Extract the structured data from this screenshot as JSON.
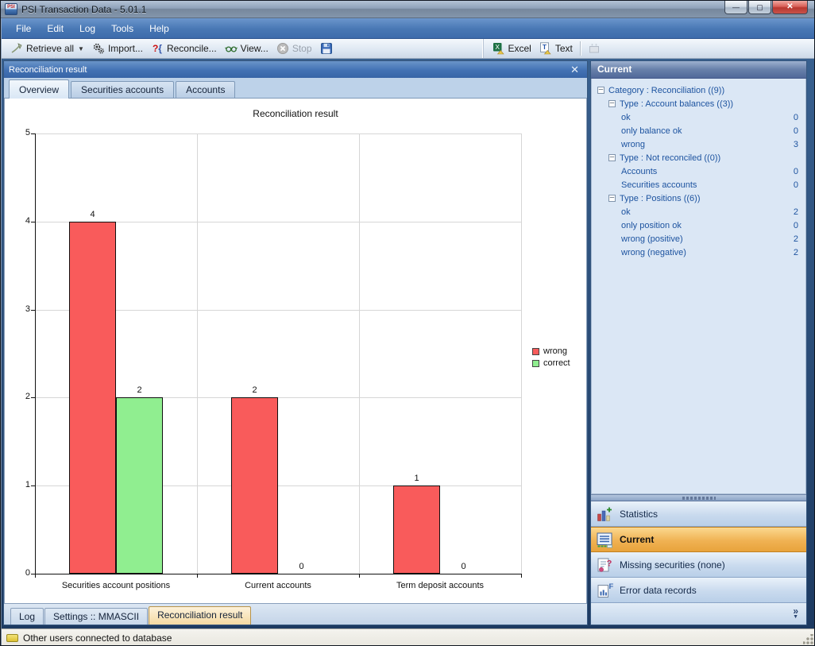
{
  "window": {
    "title": "PSI Transaction Data - 5.01.1",
    "app_icon_text": "PSI",
    "controls": [
      {
        "name": "minimize",
        "glyph": "—"
      },
      {
        "name": "maximize",
        "glyph": "▢"
      },
      {
        "name": "close",
        "glyph": "✕"
      }
    ]
  },
  "menu_bar": {
    "items": [
      "File",
      "Edit",
      "Log",
      "Tools",
      "Help"
    ]
  },
  "toolbar": {
    "left": [
      {
        "label": "Retrieve all",
        "icon": "retrieve-icon",
        "dropdown": true,
        "enabled": true
      },
      {
        "label": "Import...",
        "icon": "import-gears-icon",
        "enabled": true
      },
      {
        "label": "Reconcile...",
        "icon": "reconcile-icon",
        "enabled": true
      },
      {
        "label": "View...",
        "icon": "view-glasses-icon",
        "enabled": true
      },
      {
        "label": "Stop",
        "icon": "stop-icon",
        "enabled": false
      },
      {
        "label": "",
        "icon": "save-icon",
        "enabled": true
      }
    ],
    "right": [
      {
        "label": "Excel",
        "icon": "excel-export-icon",
        "enabled": true
      },
      {
        "label": "Text",
        "icon": "text-export-icon",
        "enabled": true,
        "sep_after": true
      },
      {
        "label": "",
        "icon": "disabled-grid-icon",
        "enabled": false
      }
    ]
  },
  "document_window": {
    "title": "Reconciliation result",
    "close_glyph": "✕",
    "tabs": [
      {
        "label": "Overview",
        "active": true
      },
      {
        "label": "Securities accounts",
        "active": false
      },
      {
        "label": "Accounts",
        "active": false
      }
    ],
    "bottom_tabs": [
      {
        "label": "Log",
        "active": false
      },
      {
        "label": "Settings :: MMASCII",
        "active": false
      },
      {
        "label": "Reconciliation result",
        "active": true
      }
    ]
  },
  "chart_data": {
    "type": "bar",
    "title": "Reconciliation result",
    "categories": [
      "Securities account positions",
      "Current accounts",
      "Term deposit accounts"
    ],
    "series": [
      {
        "name": "wrong",
        "color": "#f95b5b",
        "values": [
          4,
          2,
          1
        ]
      },
      {
        "name": "correct",
        "color": "#90ee90",
        "values": [
          2,
          0,
          0
        ]
      }
    ],
    "xlabel": "",
    "ylabel": "",
    "ylim": [
      0,
      5
    ],
    "yticks": [
      0,
      1,
      2,
      3,
      4,
      5
    ],
    "grid": true,
    "legend_position": "right",
    "value_labels": true
  },
  "side_panel": {
    "header": "Current",
    "tree": [
      {
        "label": "Category : Reconciliation ((9))",
        "level": 0,
        "expander": true,
        "count": ""
      },
      {
        "label": "Type : Account balances ((3))",
        "level": 1,
        "expander": true,
        "count": ""
      },
      {
        "label": "ok",
        "level": 2,
        "expander": false,
        "count": "0"
      },
      {
        "label": "only balance ok",
        "level": 2,
        "expander": false,
        "count": "0"
      },
      {
        "label": "wrong",
        "level": 2,
        "expander": false,
        "count": "3"
      },
      {
        "label": "Type : Not reconciled ((0))",
        "level": 1,
        "expander": true,
        "count": ""
      },
      {
        "label": "Accounts",
        "level": 2,
        "expander": false,
        "count": "0"
      },
      {
        "label": "Securities accounts",
        "level": 2,
        "expander": false,
        "count": "0"
      },
      {
        "label": "Type : Positions ((6))",
        "level": 1,
        "expander": true,
        "count": ""
      },
      {
        "label": "ok",
        "level": 2,
        "expander": false,
        "count": "2"
      },
      {
        "label": "only position ok",
        "level": 2,
        "expander": false,
        "count": "0"
      },
      {
        "label": "wrong (positive)",
        "level": 2,
        "expander": false,
        "count": "2"
      },
      {
        "label": "wrong (negative)",
        "level": 2,
        "expander": false,
        "count": "2"
      }
    ],
    "nav_buttons": [
      {
        "label": "Statistics",
        "icon": "statistics-icon",
        "active": false
      },
      {
        "label": "Current",
        "icon": "current-list-icon",
        "active": true
      },
      {
        "label": "Missing securities (none)",
        "icon": "missing-securities-icon",
        "active": false
      },
      {
        "label": "Error data records",
        "icon": "error-records-icon",
        "active": false
      }
    ],
    "overflow_chevron": "»",
    "overflow_arrow": "▼"
  },
  "status_bar": {
    "text": "Other users connected to database"
  },
  "colors": {
    "bar_wrong": "#f95b5b",
    "bar_correct": "#90ee90",
    "nav_active": "#eda83f",
    "tree_text": "#1e54a0"
  }
}
